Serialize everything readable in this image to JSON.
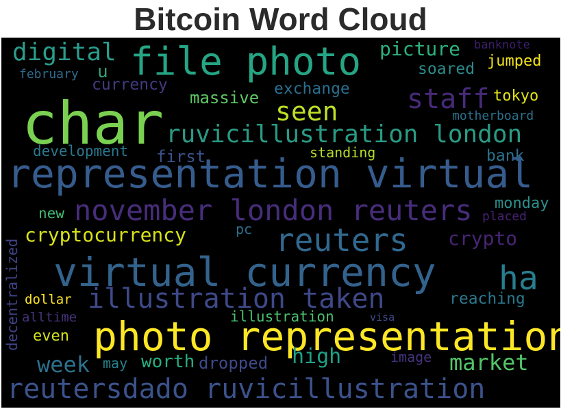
{
  "title": "Bitcoin Word Cloud",
  "words": {
    "char": {
      "text": "char",
      "color": "#7ad151"
    },
    "file_photo": {
      "text": "file photo",
      "color": "#25a584"
    },
    "digital": {
      "text": "digital",
      "color": "#2a9d8c"
    },
    "picture": {
      "text": "picture",
      "color": "#2db27d"
    },
    "banknote": {
      "text": "banknote",
      "color": "#3b1f6b"
    },
    "jumped": {
      "text": "jumped",
      "color": "#f2e51d"
    },
    "february": {
      "text": "february",
      "color": "#2f6c8e"
    },
    "u": {
      "text": "u",
      "color": "#30a07d"
    },
    "soared": {
      "text": "soared",
      "color": "#2d8c8c"
    },
    "currency": {
      "text": "currency",
      "color": "#433a83"
    },
    "exchange": {
      "text": "exchange",
      "color": "#2a6f8f"
    },
    "tokyo": {
      "text": "tokyo",
      "color": "#e2e418"
    },
    "massive": {
      "text": "massive",
      "color": "#5ec962"
    },
    "staff": {
      "text": "staff",
      "color": "#472a7a"
    },
    "seen": {
      "text": "seen",
      "color": "#bddf26"
    },
    "motherboard": {
      "text": "motherboard",
      "color": "#2c728e"
    },
    "ruvicillustration_london": {
      "text": "ruvicillustration london",
      "color": "#2a9a85"
    },
    "development": {
      "text": "development",
      "color": "#2a788e"
    },
    "first": {
      "text": "first",
      "color": "#3b528b"
    },
    "standing": {
      "text": "standing",
      "color": "#b5de2b"
    },
    "bank": {
      "text": "bank",
      "color": "#2c718e"
    },
    "representation_virtual": {
      "text": "representation virtual",
      "color": "#365c8d"
    },
    "november_london_reuters": {
      "text": "november london reuters",
      "color": "#472d7b"
    },
    "monday": {
      "text": "monday",
      "color": "#2c8f8d"
    },
    "new": {
      "text": "new",
      "color": "#3fbc73"
    },
    "placed": {
      "text": "placed",
      "color": "#482173"
    },
    "decentralized": {
      "text": "decentralized",
      "color": "#414487"
    },
    "pc": {
      "text": "pc",
      "color": "#2e6e8e"
    },
    "cryptocurrency": {
      "text": "cryptocurrency",
      "color": "#d8e219"
    },
    "reuters": {
      "text": "reuters",
      "color": "#31688e"
    },
    "crypto": {
      "text": "crypto",
      "color": "#482475"
    },
    "virtual_currency": {
      "text": "virtual currency",
      "color": "#33638d"
    },
    "ha": {
      "text": "ha",
      "color": "#287d8e"
    },
    "illustration_taken": {
      "text": "illustration taken",
      "color": "#3e4989"
    },
    "reaching": {
      "text": "reaching",
      "color": "#2a788e"
    },
    "dollar": {
      "text": "dollar",
      "color": "#fde725"
    },
    "alltime": {
      "text": "alltime",
      "color": "#46327e"
    },
    "illustration": {
      "text": "illustration",
      "color": "#4ac16d"
    },
    "visa": {
      "text": "visa",
      "color": "#3e4989"
    },
    "photo_representation": {
      "text": "photo representation",
      "color": "#fde725"
    },
    "even": {
      "text": "even",
      "color": "#d2e21b"
    },
    "high": {
      "text": "high",
      "color": "#1fa187"
    },
    "image": {
      "text": "image",
      "color": "#46337e"
    },
    "week": {
      "text": "week",
      "color": "#2c718e"
    },
    "may": {
      "text": "may",
      "color": "#26828e"
    },
    "worth": {
      "text": "worth",
      "color": "#27ad81"
    },
    "dropped": {
      "text": "dropped",
      "color": "#3e4a89"
    },
    "market": {
      "text": "market",
      "color": "#52c569"
    },
    "reutersdado_ruvicillustration": {
      "text": "reutersdado ruvicillustration",
      "color": "#3b528b"
    }
  }
}
